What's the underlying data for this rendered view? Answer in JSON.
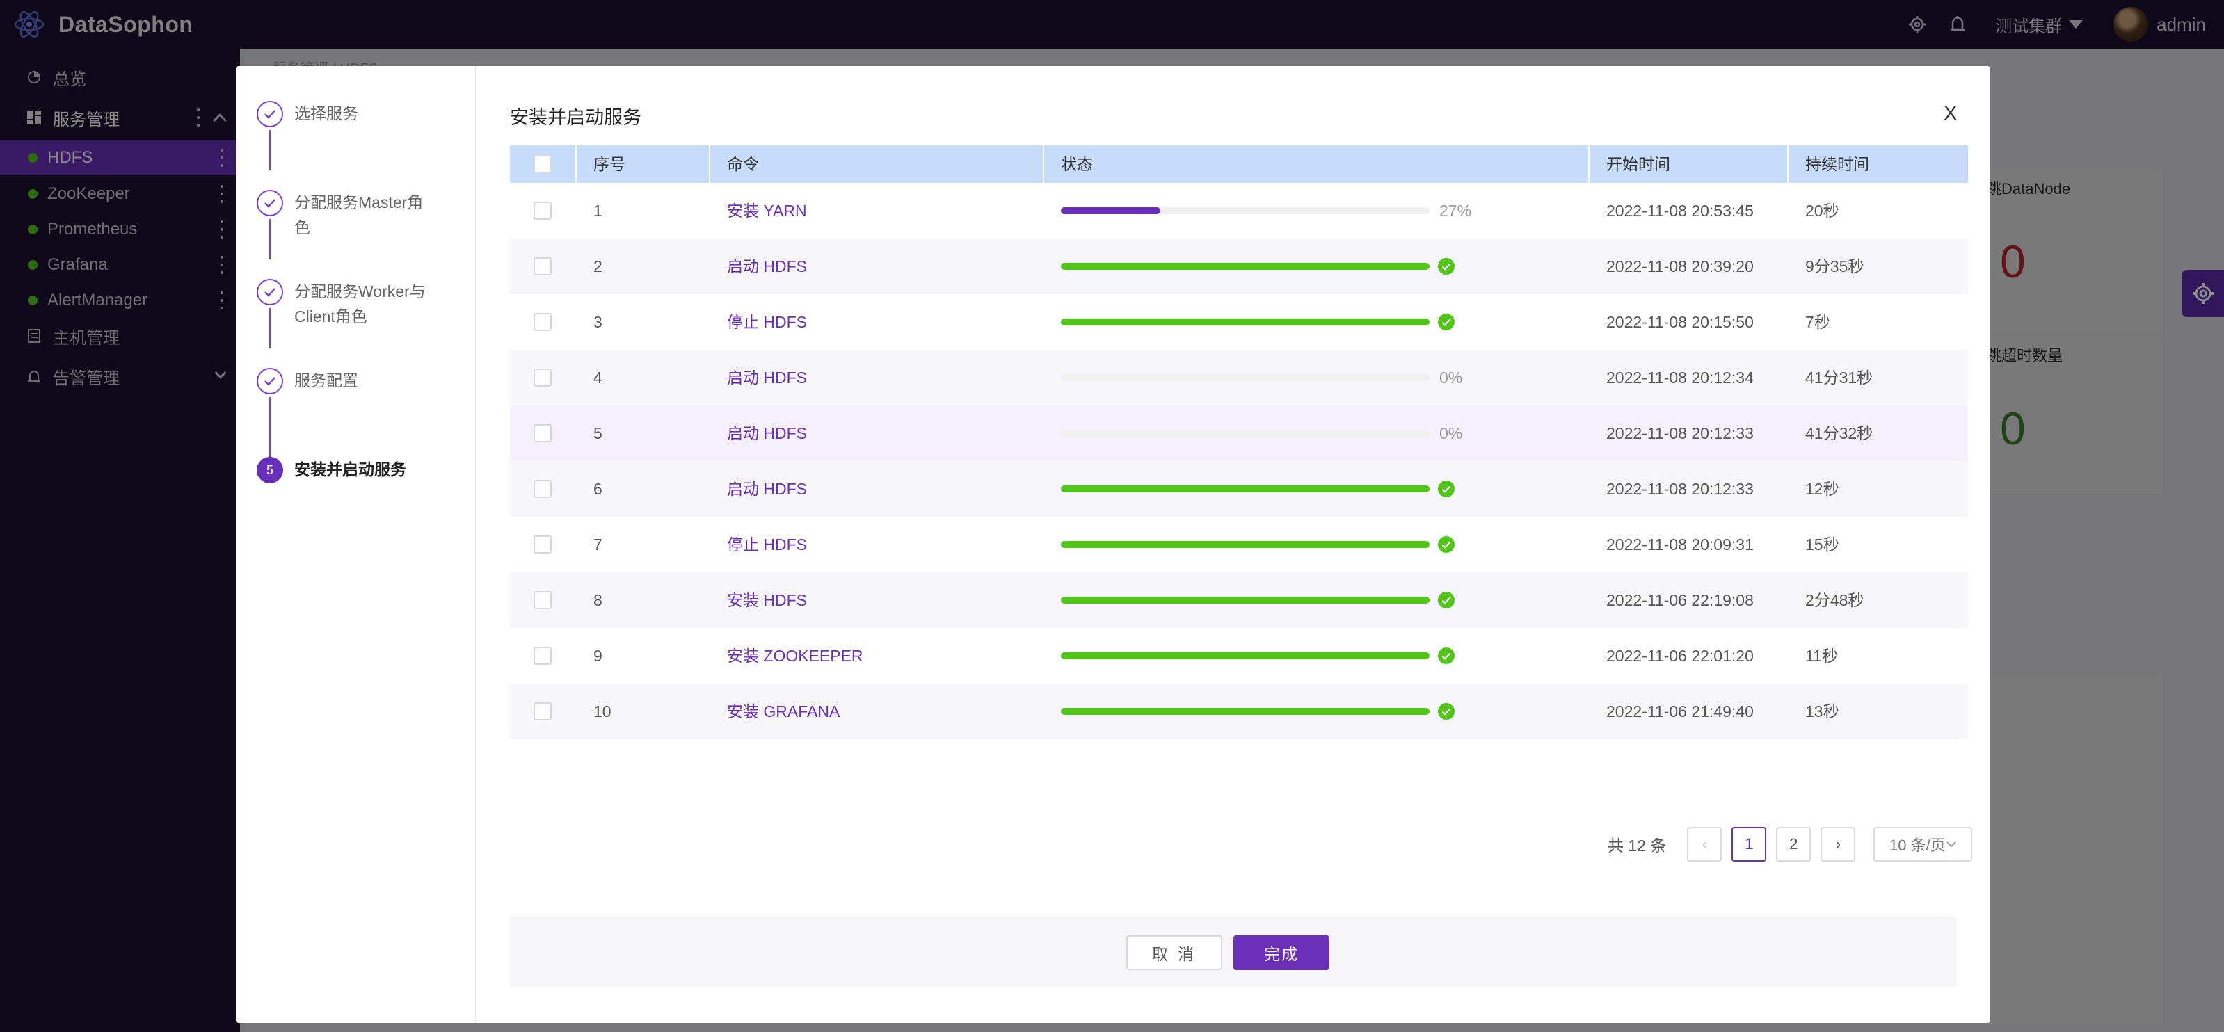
{
  "brand": {
    "name": "DataSophon"
  },
  "topbar": {
    "cluster": "测试集群",
    "user": "admin"
  },
  "sidebar": {
    "items": [
      {
        "label": "总览"
      },
      {
        "label": "服务管理"
      },
      {
        "label": "HDFS"
      },
      {
        "label": "ZooKeeper"
      },
      {
        "label": "Prometheus"
      },
      {
        "label": "Grafana"
      },
      {
        "label": "AlertManager"
      },
      {
        "label": "主机管理"
      },
      {
        "label": "告警管理"
      }
    ]
  },
  "background": {
    "breadcrumb": "服务管理 / HDFS",
    "card1_title": "跳DataNode",
    "card1_value": "0",
    "card2_title": "跳超时数量",
    "card2_value": "0"
  },
  "steps": [
    {
      "label": "选择服务"
    },
    {
      "label": "分配服务Master角色"
    },
    {
      "label": "分配服务Worker与Client角色"
    },
    {
      "label": "服务配置"
    },
    {
      "label": "安装并启动服务",
      "number": "5"
    }
  ],
  "modal": {
    "title": "安装并启动服务",
    "close": "X",
    "columns": [
      "序号",
      "命令",
      "状态",
      "开始时间",
      "持续时间"
    ],
    "rows": [
      {
        "no": "1",
        "cmd": "安装 YARN",
        "progress": 27,
        "pct": "27%",
        "start": "2022-11-08 20:53:45",
        "duration": "20秒"
      },
      {
        "no": "2",
        "cmd": "启动 HDFS",
        "progress": 100,
        "pct": "",
        "start": "2022-11-08 20:39:20",
        "duration": "9分35秒"
      },
      {
        "no": "3",
        "cmd": "停止 HDFS",
        "progress": 100,
        "pct": "",
        "start": "2022-11-08 20:15:50",
        "duration": "7秒"
      },
      {
        "no": "4",
        "cmd": "启动 HDFS",
        "progress": 0,
        "pct": "0%",
        "start": "2022-11-08 20:12:34",
        "duration": "41分31秒"
      },
      {
        "no": "5",
        "cmd": "启动 HDFS",
        "progress": 0,
        "pct": "0%",
        "start": "2022-11-08 20:12:33",
        "duration": "41分32秒"
      },
      {
        "no": "6",
        "cmd": "启动 HDFS",
        "progress": 100,
        "pct": "",
        "start": "2022-11-08 20:12:33",
        "duration": "12秒"
      },
      {
        "no": "7",
        "cmd": "停止 HDFS",
        "progress": 100,
        "pct": "",
        "start": "2022-11-08 20:09:31",
        "duration": "15秒"
      },
      {
        "no": "8",
        "cmd": "安装 HDFS",
        "progress": 100,
        "pct": "",
        "start": "2022-11-06 22:19:08",
        "duration": "2分48秒"
      },
      {
        "no": "9",
        "cmd": "安装 ZOOKEEPER",
        "progress": 100,
        "pct": "",
        "start": "2022-11-06 22:01:20",
        "duration": "11秒"
      },
      {
        "no": "10",
        "cmd": "安装 GRAFANA",
        "progress": 100,
        "pct": "",
        "start": "2022-11-06 21:49:40",
        "duration": "13秒"
      }
    ],
    "pagination": {
      "total": "共 12 条",
      "page1": "1",
      "page2": "2",
      "page_size": "10 条/页",
      "current_page": 1
    },
    "cancel": "取 消",
    "done": "完成"
  },
  "colors": {
    "accent": "#6a2fb8",
    "success": "#52c41a",
    "header_bg": "#c7dcfb",
    "sidebar_bg": "#1c0f2e"
  }
}
